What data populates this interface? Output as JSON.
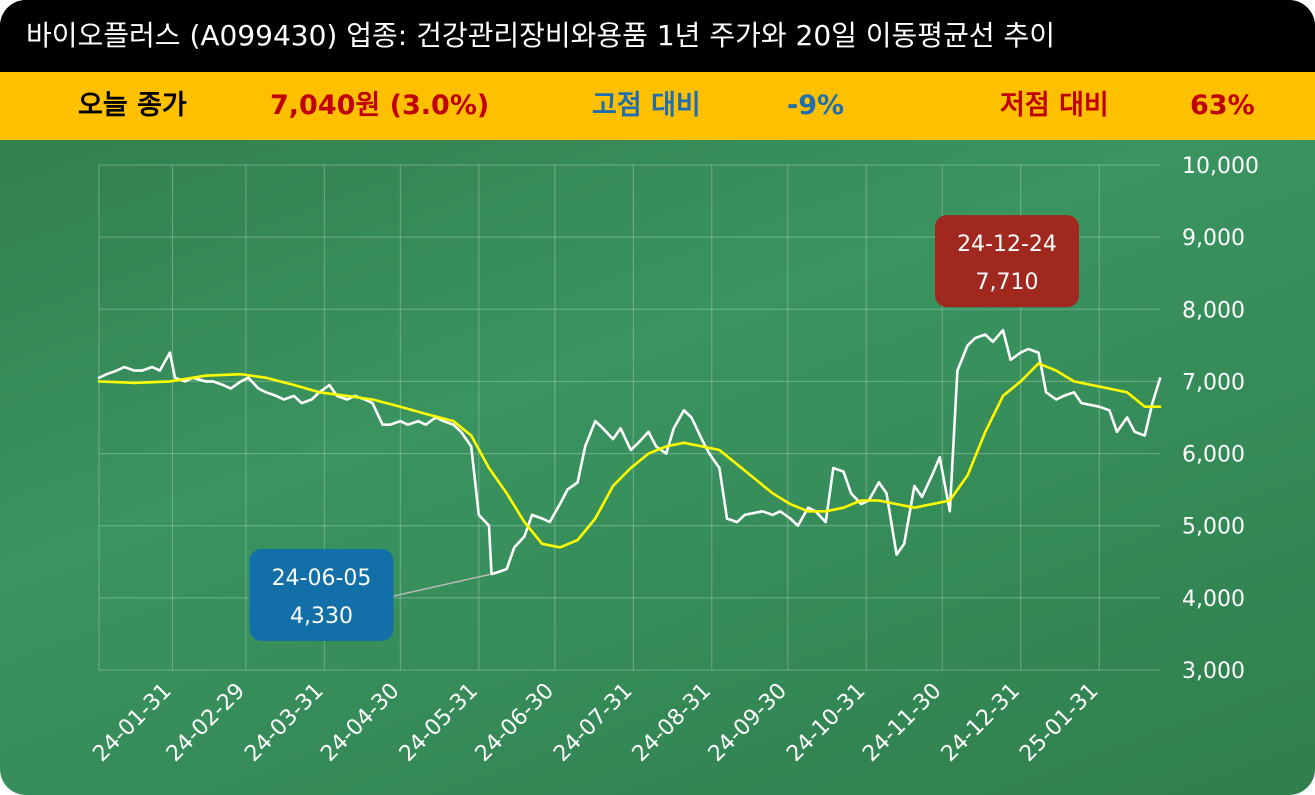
{
  "header": {
    "title": "바이오플러스 (A099430) 업종: 건강관리장비와용품 1년 주가와 20일 이동평균선 추이"
  },
  "summary": {
    "close_label": "오늘 종가",
    "close_value": "7,040원 (3.0%)",
    "high_label": "고점 대비",
    "high_value": "-9%",
    "low_label": "저점 대비",
    "low_value": "63%",
    "colors": {
      "close": "#c00000",
      "high": "#1f6fb0",
      "low": "#c00000"
    }
  },
  "chart_data": {
    "type": "line",
    "ylim": [
      3000,
      10000
    ],
    "grid": true,
    "y_ticks": [
      3000,
      4000,
      5000,
      6000,
      7000,
      8000,
      9000,
      10000
    ],
    "y_tick_labels": [
      "3,000",
      "4,000",
      "5,000",
      "6,000",
      "7,000",
      "8,000",
      "9,000",
      "10,000"
    ],
    "x_start": "24-01-02",
    "x_end": "25-02-24",
    "x_ticks": [
      "24-01-31",
      "24-02-29",
      "24-03-31",
      "24-04-30",
      "24-05-31",
      "24-06-30",
      "24-07-31",
      "24-08-31",
      "24-09-30",
      "24-10-31",
      "24-11-30",
      "24-12-31",
      "25-01-31"
    ],
    "series": [
      {
        "color": "#ffffff",
        "points": [
          [
            "24-01-02",
            7050
          ],
          [
            "24-01-05",
            7100
          ],
          [
            "24-01-09",
            7150
          ],
          [
            "24-01-12",
            7200
          ],
          [
            "24-01-16",
            7150
          ],
          [
            "24-01-19",
            7150
          ],
          [
            "24-01-23",
            7200
          ],
          [
            "24-01-26",
            7150
          ],
          [
            "24-01-30",
            7400
          ],
          [
            "24-02-01",
            7050
          ],
          [
            "24-02-05",
            7000
          ],
          [
            "24-02-08",
            7050
          ],
          [
            "24-02-13",
            7000
          ],
          [
            "24-02-16",
            7000
          ],
          [
            "24-02-20",
            6950
          ],
          [
            "24-02-23",
            6900
          ],
          [
            "24-02-27",
            7000
          ],
          [
            "24-03-01",
            7050
          ],
          [
            "24-03-05",
            6900
          ],
          [
            "24-03-08",
            6850
          ],
          [
            "24-03-12",
            6800
          ],
          [
            "24-03-15",
            6750
          ],
          [
            "24-03-19",
            6800
          ],
          [
            "24-03-22",
            6700
          ],
          [
            "24-03-26",
            6750
          ],
          [
            "24-03-29",
            6850
          ],
          [
            "24-04-02",
            6950
          ],
          [
            "24-04-05",
            6800
          ],
          [
            "24-04-09",
            6750
          ],
          [
            "24-04-12",
            6800
          ],
          [
            "24-04-16",
            6750
          ],
          [
            "24-04-19",
            6700
          ],
          [
            "24-04-23",
            6400
          ],
          [
            "24-04-26",
            6400
          ],
          [
            "24-04-30",
            6450
          ],
          [
            "24-05-03",
            6400
          ],
          [
            "24-05-07",
            6450
          ],
          [
            "24-05-10",
            6400
          ],
          [
            "24-05-14",
            6500
          ],
          [
            "24-05-17",
            6450
          ],
          [
            "24-05-21",
            6400
          ],
          [
            "24-05-24",
            6300
          ],
          [
            "24-05-28",
            6100
          ],
          [
            "24-05-31",
            5150
          ],
          [
            "24-06-04",
            5000
          ],
          [
            "24-06-05",
            4330
          ],
          [
            "24-06-07",
            4350
          ],
          [
            "24-06-11",
            4400
          ],
          [
            "24-06-14",
            4700
          ],
          [
            "24-06-18",
            4850
          ],
          [
            "24-06-21",
            5150
          ],
          [
            "24-06-25",
            5100
          ],
          [
            "24-06-28",
            5050
          ],
          [
            "24-07-02",
            5300
          ],
          [
            "24-07-05",
            5500
          ],
          [
            "24-07-09",
            5600
          ],
          [
            "24-07-12",
            6100
          ],
          [
            "24-07-16",
            6450
          ],
          [
            "24-07-19",
            6350
          ],
          [
            "24-07-23",
            6200
          ],
          [
            "24-07-26",
            6350
          ],
          [
            "24-07-30",
            6050
          ],
          [
            "24-08-02",
            6150
          ],
          [
            "24-08-06",
            6300
          ],
          [
            "24-08-09",
            6100
          ],
          [
            "24-08-13",
            6000
          ],
          [
            "24-08-16",
            6350
          ],
          [
            "24-08-20",
            6600
          ],
          [
            "24-08-23",
            6500
          ],
          [
            "24-08-27",
            6200
          ],
          [
            "24-08-30",
            6000
          ],
          [
            "24-09-03",
            5800
          ],
          [
            "24-09-06",
            5100
          ],
          [
            "24-09-10",
            5050
          ],
          [
            "24-09-13",
            5150
          ],
          [
            "24-09-20",
            5200
          ],
          [
            "24-09-24",
            5150
          ],
          [
            "24-09-27",
            5200
          ],
          [
            "24-10-01",
            5100
          ],
          [
            "24-10-04",
            5000
          ],
          [
            "24-10-08",
            5250
          ],
          [
            "24-10-11",
            5200
          ],
          [
            "24-10-15",
            5050
          ],
          [
            "24-10-18",
            5800
          ],
          [
            "24-10-22",
            5750
          ],
          [
            "24-10-25",
            5450
          ],
          [
            "24-10-29",
            5300
          ],
          [
            "24-11-01",
            5350
          ],
          [
            "24-11-05",
            5600
          ],
          [
            "24-11-08",
            5450
          ],
          [
            "24-11-12",
            4600
          ],
          [
            "24-11-15",
            4750
          ],
          [
            "24-11-19",
            5550
          ],
          [
            "24-11-22",
            5400
          ],
          [
            "24-11-26",
            5700
          ],
          [
            "24-11-29",
            5950
          ],
          [
            "24-12-03",
            5200
          ],
          [
            "24-12-06",
            7150
          ],
          [
            "24-12-10",
            7500
          ],
          [
            "24-12-13",
            7600
          ],
          [
            "24-12-17",
            7650
          ],
          [
            "24-12-20",
            7550
          ],
          [
            "24-12-24",
            7710
          ],
          [
            "24-12-27",
            7300
          ],
          [
            "24-12-31",
            7400
          ],
          [
            "25-01-03",
            7450
          ],
          [
            "25-01-07",
            7400
          ],
          [
            "25-01-10",
            6850
          ],
          [
            "25-01-14",
            6750
          ],
          [
            "25-01-17",
            6800
          ],
          [
            "25-01-21",
            6850
          ],
          [
            "25-01-24",
            6700
          ],
          [
            "25-01-31",
            6650
          ],
          [
            "25-02-04",
            6600
          ],
          [
            "25-02-07",
            6300
          ],
          [
            "25-02-11",
            6500
          ],
          [
            "25-02-14",
            6300
          ],
          [
            "25-02-18",
            6250
          ],
          [
            "25-02-21",
            6700
          ],
          [
            "25-02-24",
            7040
          ]
        ]
      },
      {
        "color": "#ffff00",
        "points": [
          [
            "24-01-02",
            7000
          ],
          [
            "24-01-16",
            6980
          ],
          [
            "24-01-30",
            7000
          ],
          [
            "24-02-13",
            7080
          ],
          [
            "24-02-27",
            7100
          ],
          [
            "24-03-08",
            7050
          ],
          [
            "24-03-19",
            6950
          ],
          [
            "24-03-29",
            6850
          ],
          [
            "24-04-09",
            6800
          ],
          [
            "24-04-19",
            6750
          ],
          [
            "24-04-30",
            6650
          ],
          [
            "24-05-10",
            6550
          ],
          [
            "24-05-21",
            6450
          ],
          [
            "24-05-28",
            6250
          ],
          [
            "24-06-04",
            5800
          ],
          [
            "24-06-11",
            5450
          ],
          [
            "24-06-18",
            5050
          ],
          [
            "24-06-25",
            4750
          ],
          [
            "24-07-02",
            4700
          ],
          [
            "24-07-09",
            4800
          ],
          [
            "24-07-16",
            5100
          ],
          [
            "24-07-23",
            5550
          ],
          [
            "24-07-30",
            5800
          ],
          [
            "24-08-06",
            6000
          ],
          [
            "24-08-13",
            6100
          ],
          [
            "24-08-20",
            6150
          ],
          [
            "24-08-27",
            6100
          ],
          [
            "24-09-03",
            6050
          ],
          [
            "24-09-10",
            5850
          ],
          [
            "24-09-17",
            5650
          ],
          [
            "24-09-24",
            5450
          ],
          [
            "24-10-01",
            5300
          ],
          [
            "24-10-08",
            5200
          ],
          [
            "24-10-15",
            5200
          ],
          [
            "24-10-22",
            5250
          ],
          [
            "24-10-29",
            5350
          ],
          [
            "24-11-05",
            5350
          ],
          [
            "24-11-12",
            5300
          ],
          [
            "24-11-19",
            5250
          ],
          [
            "24-11-26",
            5300
          ],
          [
            "24-12-03",
            5350
          ],
          [
            "24-12-10",
            5700
          ],
          [
            "24-12-17",
            6300
          ],
          [
            "24-12-24",
            6800
          ],
          [
            "24-12-31",
            7000
          ],
          [
            "25-01-07",
            7250
          ],
          [
            "25-01-14",
            7150
          ],
          [
            "25-01-21",
            7000
          ],
          [
            "25-01-28",
            6950
          ],
          [
            "25-02-04",
            6900
          ],
          [
            "25-02-11",
            6850
          ],
          [
            "25-02-18",
            6650
          ],
          [
            "25-02-24",
            6650
          ]
        ]
      }
    ],
    "annotations": [
      {
        "date": "24-12-24",
        "value": 7710,
        "label_date": "24-12-24",
        "label_value": "7,710",
        "color": "#a0281e"
      },
      {
        "date": "24-06-05",
        "value": 4330,
        "label_date": "24-06-05",
        "label_value": "4,330",
        "color": "#136fa8"
      }
    ]
  }
}
